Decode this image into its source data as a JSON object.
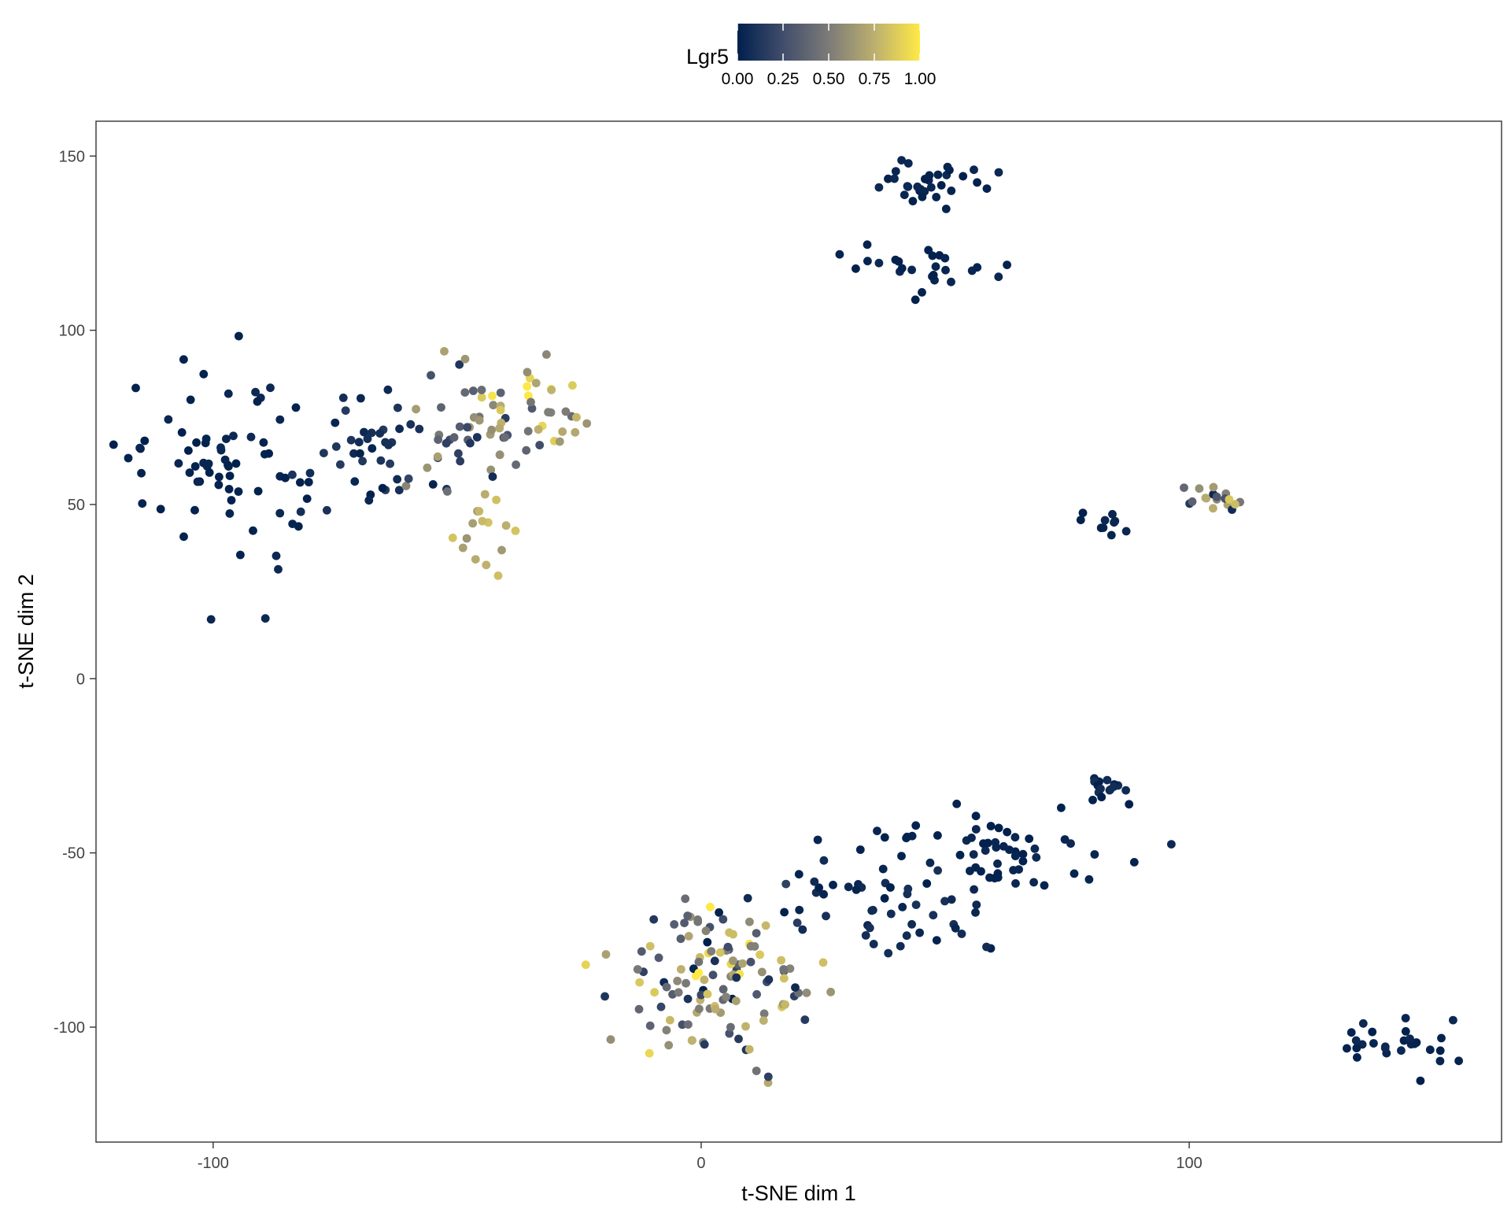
{
  "chart_data": {
    "type": "scatter",
    "title": "",
    "xlabel": "t-SNE dim 1",
    "ylabel": "t-SNE dim 2",
    "xlim": [
      -124,
      164
    ],
    "ylim": [
      -133,
      160
    ],
    "x_ticks": [
      -100,
      0,
      100
    ],
    "y_ticks": [
      150,
      100,
      50,
      0,
      -50,
      -100
    ],
    "grid": false,
    "legend": {
      "title": "Lgr5",
      "position": "top",
      "type": "colorbar",
      "ticks": [
        0.0,
        0.25,
        0.5,
        0.75,
        1.0
      ],
      "tick_labels": [
        "0.00",
        "0.25",
        "0.50",
        "0.75",
        "1.00"
      ],
      "colormap": [
        "#00204d",
        "#414d6b",
        "#7c7b78",
        "#bcaf6f",
        "#ffea46"
      ]
    },
    "point_color_low": "#00204d",
    "point_color_high": "#ffea46",
    "clusters": [
      {
        "cx": -97,
        "cy": 62,
        "sx": 11,
        "sy": 18,
        "n": 70,
        "expr": [
          0.0,
          0.05
        ]
      },
      {
        "cx": -68,
        "cy": 68,
        "sx": 9,
        "sy": 12,
        "n": 42,
        "expr": [
          0.0,
          0.15
        ]
      },
      {
        "cx": -50,
        "cy": 72,
        "sx": 7,
        "sy": 11,
        "n": 40,
        "expr": [
          0.05,
          0.7
        ]
      },
      {
        "cx": -45,
        "cy": 42,
        "sx": 5,
        "sy": 8,
        "n": 16,
        "expr": [
          0.6,
          0.85
        ]
      },
      {
        "cx": -37,
        "cy": 78,
        "sx": 6,
        "sy": 7,
        "n": 30,
        "expr": [
          0.3,
          1.0
        ]
      },
      {
        "cx": -26,
        "cy": 75,
        "sx": 2,
        "sy": 4,
        "n": 6,
        "expr": [
          0.2,
          1.0
        ]
      },
      {
        "cx": 46,
        "cy": 142,
        "sx": 8,
        "sy": 3.5,
        "n": 32,
        "expr": [
          0.0,
          0.05
        ]
      },
      {
        "cx": 46,
        "cy": 117,
        "sx": 8,
        "sy": 4,
        "n": 26,
        "expr": [
          0.0,
          0.05
        ]
      },
      {
        "cx": 82,
        "cy": 45.5,
        "sx": 3,
        "sy": 1.5,
        "n": 10,
        "expr": [
          0.0,
          0.05
        ]
      },
      {
        "cx": 105,
        "cy": 51.5,
        "sx": 4.5,
        "sy": 2.5,
        "n": 18,
        "expr": [
          0.0,
          0.9
        ]
      },
      {
        "cx": 82,
        "cy": -32,
        "sx": 3,
        "sy": 3,
        "n": 16,
        "expr": [
          0.0,
          0.1
        ]
      },
      {
        "cx": 58,
        "cy": -50,
        "sx": 14,
        "sy": 7,
        "n": 60,
        "expr": [
          0.0,
          0.05
        ]
      },
      {
        "cx": 38,
        "cy": -66,
        "sx": 10,
        "sy": 8,
        "n": 45,
        "expr": [
          0.0,
          0.1
        ]
      },
      {
        "cx": 5,
        "cy": -88,
        "sx": 11,
        "sy": 13,
        "n": 130,
        "expr": [
          0.0,
          1.0
        ]
      },
      {
        "cx": 143,
        "cy": -104,
        "sx": 7,
        "sy": 5,
        "n": 28,
        "expr": [
          0.0,
          0.05
        ]
      }
    ]
  }
}
